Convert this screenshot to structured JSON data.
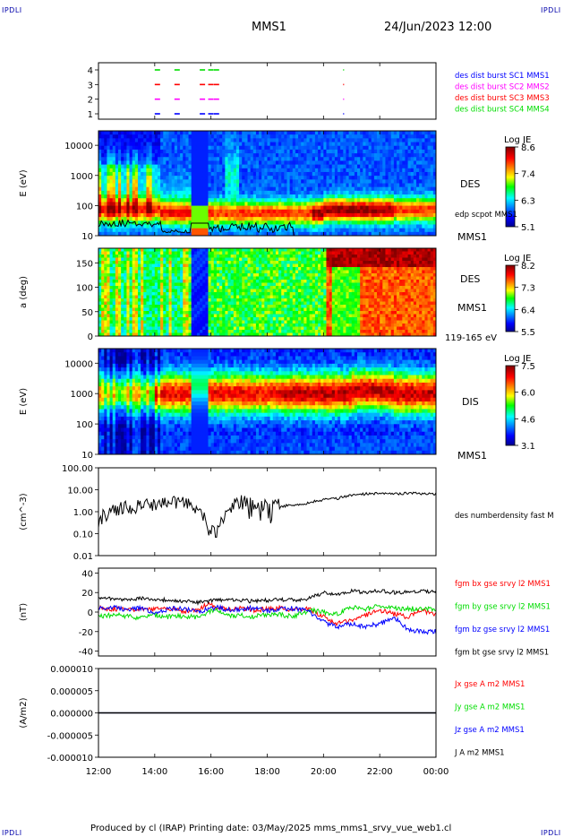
{
  "header": {
    "corner_tl": "IPDLI",
    "corner_tr": "IPDLI",
    "corner_bl": "IPDLI",
    "corner_br": "IPDLI",
    "mission": "MMS1",
    "datetime": "24/Jun/2023 12:00"
  },
  "footer": {
    "text": "Produced by cl (IRAP)   Printing date: 03/May/2025   mms_mms1_srvy_vue_web1.cl"
  },
  "time_axis": {
    "ticks": [
      "12:00",
      "14:00",
      "16:00",
      "18:00",
      "20:00",
      "22:00",
      "00:00"
    ],
    "tick_hours": [
      0,
      2,
      4,
      6,
      8,
      10,
      12
    ]
  },
  "colors": {
    "frame": "#000000",
    "red": "#ff0000",
    "green": "#00dd00",
    "blue": "#0000ff",
    "magenta": "#ff00ff",
    "black": "#000000"
  },
  "panels": {
    "burst": {
      "yticks": [
        "4",
        "3",
        "2",
        "1"
      ],
      "labels": [
        {
          "text": "des dist burst SC1 MMS1",
          "color": "#0000ff"
        },
        {
          "text": "des dist burst SC2 MMS2",
          "color": "#ff00ff"
        },
        {
          "text": "des dist burst SC3 MMS3",
          "color": "#ff0000"
        },
        {
          "text": "des dist burst SC4 MMS4",
          "color": "#00dd00"
        }
      ]
    },
    "des_energy": {
      "ylabel": "E (eV)",
      "yticks": [
        "10000",
        "1000",
        "100",
        "10"
      ],
      "name": "DES",
      "sc": "MMS1",
      "overlay": "edp scpot MMS1",
      "cbar_title": "Log JE",
      "cbar_ticks": [
        "8.6",
        "7.4",
        "6.3",
        "5.1"
      ]
    },
    "des_pitch": {
      "ylabel": "a (deg)",
      "yticks": [
        "150",
        "100",
        "50",
        "0"
      ],
      "name": "DES",
      "sc": "MMS1",
      "range": "119-165 eV",
      "cbar_title": "Log JE",
      "cbar_ticks": [
        "8.2",
        "7.3",
        "6.4",
        "5.5"
      ]
    },
    "dis_energy": {
      "ylabel": "E (eV)",
      "yticks": [
        "10000",
        "1000",
        "100",
        "10"
      ],
      "name": "DIS",
      "sc": "MMS1",
      "cbar_title": "Log JE",
      "cbar_ticks": [
        "7.5",
        "6.0",
        "4.6",
        "3.1"
      ]
    },
    "density": {
      "ylabel": "(cm^-3)",
      "yticks": [
        "100.00",
        "10.00",
        "1.00",
        "0.10",
        "0.01"
      ],
      "label": "des numberdensity fast M"
    },
    "bfield": {
      "ylabel": "(nT)",
      "yticks": [
        "40",
        "20",
        "0",
        "-20",
        "-40"
      ],
      "labels": [
        {
          "text": "fgm bx gse srvy l2 MMS1",
          "color": "#ff0000"
        },
        {
          "text": "fgm by gse srvy l2 MMS1",
          "color": "#00dd00"
        },
        {
          "text": "fgm bz gse srvy l2 MMS1",
          "color": "#0000ff"
        },
        {
          "text": "fgm bt gse srvy l2 MMS1",
          "color": "#000000"
        }
      ]
    },
    "current": {
      "ylabel": "(A/m2)",
      "yticks": [
        "0.000010",
        "0.000005",
        "0.000000",
        "-0.000005",
        "-0.000010"
      ],
      "labels": [
        {
          "text": "Jx gse A m2 MMS1",
          "color": "#ff0000"
        },
        {
          "text": "Jy gse A m2 MMS1",
          "color": "#00dd00"
        },
        {
          "text": "Jz gse A m2 MMS1",
          "color": "#0000ff"
        },
        {
          "text": "J A m2 MMS1",
          "color": "#000000"
        }
      ]
    }
  },
  "chart_data": [
    {
      "type": "scatter",
      "title": "des dist burst",
      "x_hours": [
        2.0,
        2.7,
        3.6,
        3.9,
        4.1,
        8.7
      ],
      "series": [
        {
          "name": "des dist burst SC1 MMS1",
          "y": 1
        },
        {
          "name": "des dist burst SC2 MMS2",
          "y": 2
        },
        {
          "name": "des dist burst SC3 MMS3",
          "y": 3
        },
        {
          "name": "des dist burst SC4 MMS4",
          "y": 4
        }
      ]
    },
    {
      "type": "heatmap",
      "title": "DES",
      "ylabel": "E (eV)",
      "yscale": "log",
      "ylim": [
        10,
        30000
      ],
      "colorbar": "Log JE",
      "clim": [
        5.1,
        8.6
      ]
    },
    {
      "type": "heatmap",
      "title": "DES",
      "ylabel": "a (deg)",
      "ylim": [
        0,
        180
      ],
      "colorbar": "Log JE",
      "clim": [
        5.5,
        8.2
      ]
    },
    {
      "type": "heatmap",
      "title": "DIS",
      "ylabel": "E (eV)",
      "yscale": "log",
      "ylim": [
        10,
        30000
      ],
      "colorbar": "Log JE",
      "clim": [
        3.1,
        7.5
      ]
    },
    {
      "type": "line",
      "ylabel": "(cm^-3)",
      "yscale": "log",
      "ylim": [
        0.01,
        100
      ],
      "series": [
        {
          "name": "des numberdensity fast M",
          "x_hours": [
            0,
            0.3,
            0.6,
            1.0,
            1.5,
            2.0,
            2.5,
            3.0,
            3.5,
            3.9,
            4.2,
            4.6,
            5.0,
            5.5,
            6.0,
            6.5,
            7.0,
            7.5,
            8.0,
            8.5,
            9.0,
            9.5,
            10.0,
            10.5,
            11.0,
            11.5,
            12.0
          ],
          "y": [
            0.4,
            0.8,
            1.2,
            1.5,
            1.8,
            2.0,
            2.5,
            3.0,
            1.5,
            0.15,
            0.1,
            1.0,
            2.8,
            2.0,
            2.5,
            1.8,
            2.0,
            2.6,
            3.5,
            4.0,
            5.5,
            6.5,
            7.0,
            6.5,
            7.0,
            6.5,
            6.5
          ]
        }
      ]
    },
    {
      "type": "line",
      "ylabel": "(nT)",
      "ylim": [
        -45,
        45
      ],
      "x_hours": [
        0,
        0.5,
        1.0,
        1.5,
        2.0,
        2.5,
        3.0,
        3.5,
        3.9,
        4.2,
        4.6,
        5.0,
        5.5,
        6.0,
        6.5,
        7.0,
        7.5,
        8.0,
        8.5,
        9.0,
        9.5,
        10.0,
        10.5,
        11.0,
        11.5,
        12.0
      ],
      "series": [
        {
          "name": "fgm bx gse srvy l2 MMS1",
          "values": [
            5,
            3,
            4,
            2,
            3,
            4,
            1,
            2,
            8,
            5,
            3,
            4,
            2,
            3,
            4,
            2,
            3,
            -5,
            -12,
            -8,
            -3,
            2,
            -2,
            -5,
            2,
            -3
          ]
        },
        {
          "name": "fgm by gse srvy l2 MMS1",
          "values": [
            -5,
            -3,
            -4,
            -6,
            -3,
            -5,
            -4,
            -5,
            0,
            2,
            -4,
            -3,
            -5,
            -2,
            -3,
            -4,
            2,
            0,
            -2,
            5,
            3,
            6,
            4,
            3,
            4,
            3
          ]
        },
        {
          "name": "fgm bz gse srvy l2 MMS1",
          "values": [
            3,
            5,
            2,
            4,
            -2,
            3,
            4,
            0,
            3,
            5,
            2,
            3,
            4,
            2,
            3,
            4,
            0,
            -10,
            -15,
            -12,
            -15,
            -12,
            -5,
            -18,
            -20,
            -20
          ]
        },
        {
          "name": "fgm bt gse srvy l2 MMS1",
          "values": [
            15,
            13,
            12,
            14,
            12,
            13,
            11,
            10,
            11,
            12,
            13,
            12,
            11,
            12,
            13,
            12,
            14,
            20,
            18,
            22,
            20,
            22,
            20,
            21,
            22,
            20
          ]
        }
      ]
    },
    {
      "type": "line",
      "ylabel": "(A/m2)",
      "ylim": [
        -1e-05,
        1e-05
      ],
      "series": [
        {
          "name": "Jx gse A m2 MMS1",
          "values": [
            0,
            0
          ]
        },
        {
          "name": "Jy gse A m2 MMS1",
          "values": [
            0,
            0
          ]
        },
        {
          "name": "Jz gse A m2 MMS1",
          "values": [
            0,
            0
          ]
        },
        {
          "name": "J A m2 MMS1",
          "values": [
            0,
            0
          ]
        }
      ]
    }
  ]
}
